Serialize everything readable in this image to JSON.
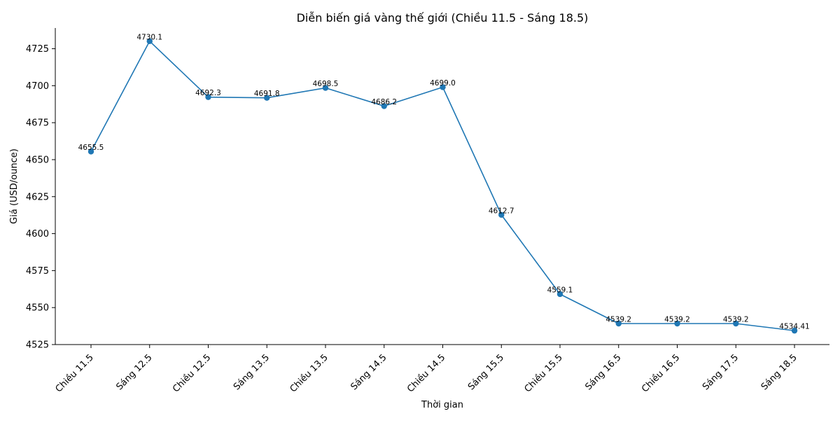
{
  "chart_data": {
    "type": "line",
    "title": "Diễn biến giá vàng thế giới (Chiều 11.5 - Sáng 18.5)",
    "xlabel": "Thời gian",
    "ylabel": "Giá (USD/ounce)",
    "categories": [
      "Chiều 11.5",
      "Sáng 12.5",
      "Chiều 12.5",
      "Sáng 13.5",
      "Chiều 13.5",
      "Sáng 14.5",
      "Chiều 14.5",
      "Sáng 15.5",
      "Chiều 15.5",
      "Sáng 16.5",
      "Chiều 16.5",
      "Sáng 17.5",
      "Sáng 18.5"
    ],
    "series": [
      {
        "values": [
          4655.5,
          4730.1,
          4692.3,
          4691.8,
          4698.5,
          4686.2,
          4699.0,
          4612.7,
          4559.1,
          4539.2,
          4539.2,
          4539.2,
          4534.41
        ],
        "color": "#1f77b4"
      }
    ],
    "data_labels": [
      "4655.5",
      "4730.1",
      "4692.3",
      "4691.8",
      "4698.5",
      "4686.2",
      "4699.0",
      "4612.7",
      "4559.1",
      "4539.2",
      "4539.2",
      "4539.2",
      "4534.41"
    ],
    "yticks": [
      4525,
      4550,
      4575,
      4600,
      4625,
      4650,
      4675,
      4700,
      4725
    ],
    "ylim": [
      4525,
      4739
    ],
    "grid": false,
    "legend": "none",
    "x_tick_rotation": 45
  }
}
